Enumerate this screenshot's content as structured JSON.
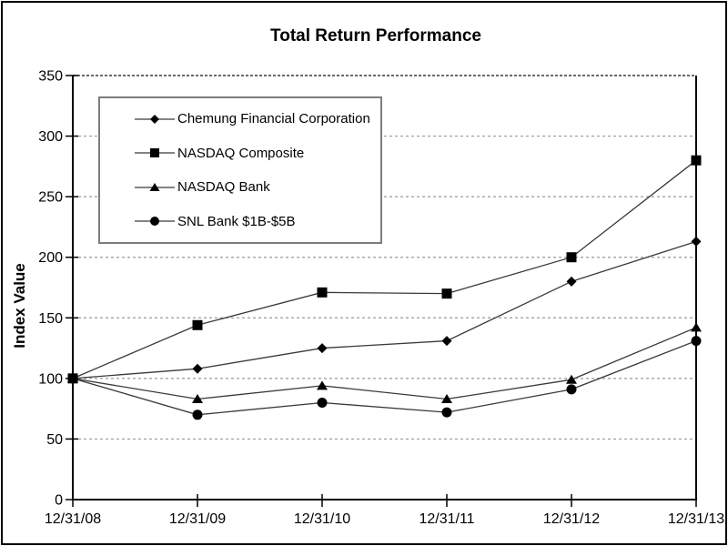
{
  "chart_data": {
    "type": "line",
    "title": "Total Return Performance",
    "xlabel": "",
    "ylabel": "Index Value",
    "x_categories": [
      "12/31/08",
      "12/31/09",
      "12/31/10",
      "12/31/11",
      "12/31/12",
      "12/31/13"
    ],
    "y_ticks": [
      0,
      50,
      100,
      150,
      200,
      250,
      300,
      350
    ],
    "ylim": [
      0,
      350
    ],
    "grid": "horizontal-dashed",
    "legend_position": "inside-top-left",
    "series": [
      {
        "name": "Chemung Financial Corporation",
        "marker": "diamond",
        "values": [
          100,
          108,
          125,
          131,
          180,
          213
        ]
      },
      {
        "name": "NASDAQ Composite",
        "marker": "square",
        "values": [
          100,
          144,
          171,
          170,
          200,
          280
        ]
      },
      {
        "name": "NASDAQ Bank",
        "marker": "triangle",
        "values": [
          100,
          83,
          94,
          83,
          99,
          142
        ]
      },
      {
        "name": "SNL Bank $1B-$5B",
        "marker": "circle",
        "values": [
          100,
          70,
          80,
          72,
          91,
          131
        ]
      }
    ],
    "colors": {
      "line": "#3a3a3a",
      "marker": "#000000",
      "grid": "#999999",
      "top_grid": "#555555",
      "axis": "#000000",
      "text": "#000000",
      "legend_border": "#7d7d7d",
      "background": "#ffffff"
    }
  }
}
